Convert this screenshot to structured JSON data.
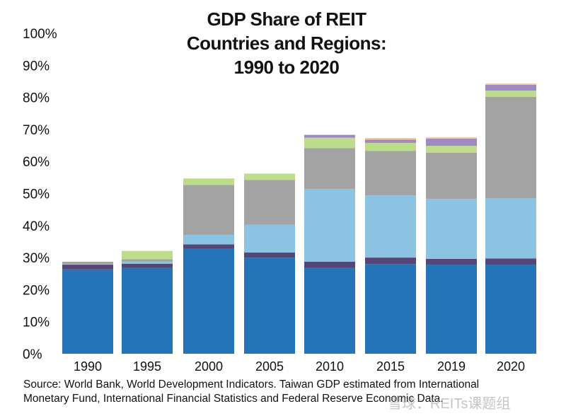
{
  "chart_data": {
    "type": "bar",
    "stacked": true,
    "title_lines": [
      "GDP Share of REIT",
      "Countries and Regions:",
      "1990 to 2020"
    ],
    "categories": [
      "1990",
      "1995",
      "2000",
      "2005",
      "2010",
      "2015",
      "2019",
      "2020"
    ],
    "ylim": [
      0,
      100
    ],
    "yticks": [
      "0%",
      "10%",
      "20%",
      "30%",
      "40%",
      "50%",
      "60%",
      "70%",
      "80%",
      "90%",
      "100%"
    ],
    "grid": false,
    "series": [
      {
        "color": "#2474b7",
        "values": [
          26.3,
          26.8,
          32.7,
          30.0,
          26.8,
          28.0,
          27.8,
          27.8
        ]
      },
      {
        "color": "#544677",
        "values": [
          1.5,
          1.3,
          1.4,
          1.6,
          1.9,
          2.0,
          1.8,
          1.9
        ]
      },
      {
        "color": "#8cc3e3",
        "values": [
          0.2,
          0.7,
          3.0,
          8.6,
          22.7,
          19.4,
          18.7,
          18.8
        ]
      },
      {
        "color": "#a4a3a4",
        "values": [
          0.7,
          0.7,
          15.6,
          14.0,
          12.8,
          13.9,
          14.4,
          31.7
        ]
      },
      {
        "color": "#bedd8c",
        "values": [
          0,
          2.6,
          2.0,
          2.0,
          3.2,
          2.5,
          2.2,
          1.9
        ]
      },
      {
        "color": "#a088c4",
        "values": [
          0,
          0,
          0,
          0,
          0.9,
          1.0,
          2.2,
          1.8
        ]
      },
      {
        "color": "#f3c68f",
        "values": [
          0,
          0,
          0,
          0,
          0,
          0.5,
          0.4,
          0.4
        ]
      }
    ],
    "source_lines": [
      "Source: World Bank, World Development Indicators. Taiwan GDP estimated from International",
      "Monetary Fund, International Financial Statistics and Federal Reserve Economic Data."
    ],
    "watermark": "雪球：REITs课题组"
  }
}
